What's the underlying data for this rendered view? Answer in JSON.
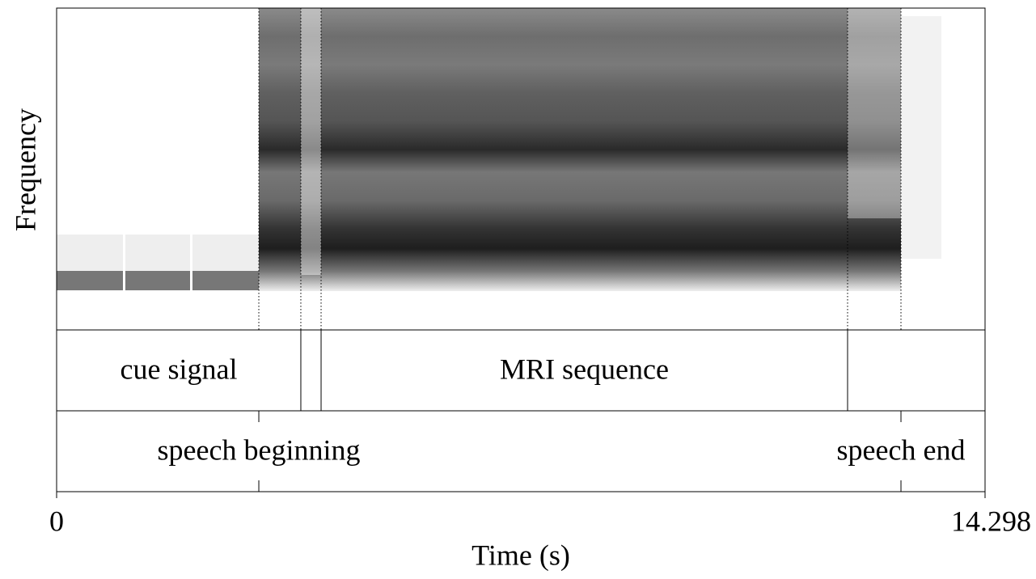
{
  "chart_data": {
    "type": "spectrogram",
    "ylabel": "Frequency",
    "xlabel": "Time (s)",
    "xlim": [
      0,
      14.298
    ],
    "xticks": [
      0,
      14.298
    ],
    "tiers": [
      {
        "kind": "interval",
        "boundaries": [
          3.761,
          4.073,
          12.181
        ],
        "intervals": [
          {
            "label": "cue signal",
            "start": 0,
            "end": 3.761
          },
          {
            "label": "MRI sequence",
            "start": 4.073,
            "end": 12.181
          }
        ]
      },
      {
        "kind": "point",
        "points": [
          {
            "label": "speech beginning",
            "time": 3.114
          },
          {
            "label": "speech end",
            "time": 13.003
          }
        ]
      }
    ]
  }
}
